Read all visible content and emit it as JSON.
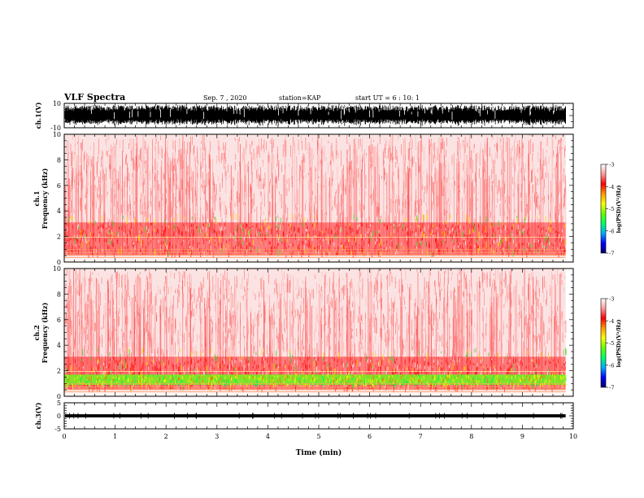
{
  "header": {
    "title": "VLF Spectra",
    "date": "Sep. 7 , 2020",
    "station": "station=KAP",
    "start_ut": "start UT = 6 : 10: 1"
  },
  "chart_data": {
    "type": "heatmap",
    "x": {
      "label": "Time (min)",
      "range": [
        0,
        10
      ],
      "ticks": [
        "0",
        "1",
        "2",
        "3",
        "4",
        "5",
        "6",
        "7",
        "8",
        "9",
        "10"
      ]
    },
    "panels": [
      {
        "id": "ch1-waveform",
        "type": "line",
        "ylabel": "ch.1(V)",
        "ylim": [
          -10,
          10
        ],
        "yticks": [
          "10",
          "-10"
        ],
        "description_values": {
          "amplitude_fraction": 0.85
        }
      },
      {
        "id": "ch1-spectrogram",
        "type": "heatmap",
        "ylabel": "ch.1\nFrequency (kHz)",
        "ylabel_lines": [
          "ch.1",
          "Frequency (kHz)"
        ],
        "ylim": [
          0,
          10
        ],
        "yticks": [
          "0",
          "2",
          "4",
          "6",
          "8",
          "10"
        ]
      },
      {
        "id": "ch2-spectrogram",
        "type": "heatmap",
        "ylabel_lines": [
          "ch.2",
          "Frequency (kHz)"
        ],
        "ylim": [
          0,
          10
        ],
        "yticks": [
          "0",
          "2",
          "4",
          "6",
          "8",
          "10"
        ]
      },
      {
        "id": "ch3-waveform",
        "type": "line",
        "ylabel": "ch.3(V)",
        "ylim": [
          -5,
          5
        ],
        "yticks": [
          "5",
          "0",
          "-5"
        ]
      }
    ],
    "colorbars": [
      {
        "label": "log(PSD)(V²/Hz)",
        "range": [
          -7,
          -3
        ],
        "ticks": [
          "-3",
          "-4",
          "-5",
          "-6",
          "-7"
        ]
      },
      {
        "label": "log(PSD)(V²/Hz)",
        "range": [
          -7,
          -3
        ],
        "ticks": [
          "-3",
          "-4",
          "-5",
          "-6",
          "-7"
        ]
      }
    ],
    "colormap": [
      "#000066",
      "#0000ff",
      "#00aaff",
      "#00ff66",
      "#66ff00",
      "#ffff00",
      "#ff9900",
      "#ff0000",
      "#ff9999",
      "#ffffff"
    ],
    "data_end_min": 9.85
  }
}
